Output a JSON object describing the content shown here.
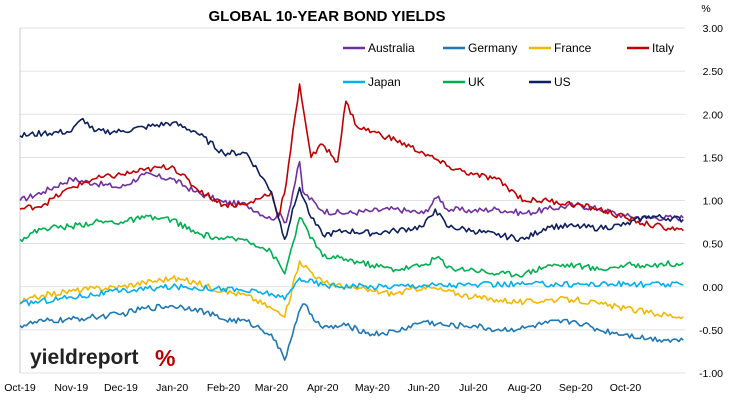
{
  "chart_data": {
    "type": "line",
    "title": "GLOBAL 10-YEAR BOND YIELDS",
    "ylabel": "%",
    "xlabel": "",
    "ylim": [
      -1.0,
      3.0
    ],
    "y_ticks": [
      "-1.00",
      "-0.50",
      "0.00",
      "0.50",
      "1.00",
      "1.50",
      "2.00",
      "2.50",
      "3.00"
    ],
    "x_ticks": [
      "Oct-19",
      "Nov-19",
      "Dec-19",
      "Jan-20",
      "Feb-20",
      "Mar-20",
      "Apr-20",
      "May-20",
      "Jun-20",
      "Jul-20",
      "Aug-20",
      "Sep-20",
      "Oct-20"
    ],
    "x_axis_range": [
      "2019-10-01",
      "2020-11-06"
    ],
    "grid": "horizontal",
    "y_axis_side": "right",
    "legend_position": "top-right",
    "series": [
      {
        "name": "Australia",
        "color": "#7030A0",
        "x": [
          "2019-10-01",
          "2019-10-15",
          "2019-11-01",
          "2019-11-15",
          "2019-12-01",
          "2019-12-15",
          "2020-01-01",
          "2020-01-15",
          "2020-02-01",
          "2020-02-15",
          "2020-03-01",
          "2020-03-05",
          "2020-03-10",
          "2020-03-18",
          "2020-03-20",
          "2020-04-01",
          "2020-04-15",
          "2020-05-01",
          "2020-05-15",
          "2020-06-01",
          "2020-06-10",
          "2020-06-15",
          "2020-07-01",
          "2020-07-15",
          "2020-08-01",
          "2020-08-15",
          "2020-09-01",
          "2020-09-15",
          "2020-10-01",
          "2020-10-15",
          "2020-11-05"
        ],
        "values": [
          1.0,
          1.1,
          1.25,
          1.2,
          1.15,
          1.3,
          1.25,
          1.1,
          0.98,
          0.95,
          0.78,
          0.85,
          0.75,
          1.45,
          1.1,
          0.88,
          0.85,
          0.88,
          0.9,
          0.85,
          1.05,
          0.9,
          0.88,
          0.9,
          0.85,
          0.9,
          0.95,
          0.9,
          0.82,
          0.8,
          0.8
        ]
      },
      {
        "name": "Germany",
        "color": "#1F77B4",
        "x": [
          "2019-10-01",
          "2019-10-15",
          "2019-11-01",
          "2019-11-15",
          "2019-12-01",
          "2019-12-15",
          "2020-01-01",
          "2020-01-15",
          "2020-02-01",
          "2020-02-15",
          "2020-03-01",
          "2020-03-09",
          "2020-03-15",
          "2020-03-20",
          "2020-04-01",
          "2020-04-15",
          "2020-05-01",
          "2020-05-15",
          "2020-06-01",
          "2020-06-15",
          "2020-07-01",
          "2020-07-15",
          "2020-08-01",
          "2020-08-15",
          "2020-09-01",
          "2020-09-15",
          "2020-10-01",
          "2020-10-15",
          "2020-11-05"
        ],
        "values": [
          -0.45,
          -0.4,
          -0.38,
          -0.35,
          -0.32,
          -0.25,
          -0.22,
          -0.25,
          -0.38,
          -0.4,
          -0.55,
          -0.85,
          -0.45,
          -0.2,
          -0.48,
          -0.45,
          -0.55,
          -0.52,
          -0.4,
          -0.45,
          -0.45,
          -0.5,
          -0.48,
          -0.42,
          -0.4,
          -0.5,
          -0.55,
          -0.6,
          -0.62
        ]
      },
      {
        "name": "France",
        "color": "#F5B800",
        "x": [
          "2019-10-01",
          "2019-10-15",
          "2019-11-01",
          "2019-11-15",
          "2019-12-01",
          "2019-12-15",
          "2020-01-01",
          "2020-01-15",
          "2020-02-01",
          "2020-02-15",
          "2020-03-01",
          "2020-03-09",
          "2020-03-18",
          "2020-04-01",
          "2020-04-15",
          "2020-05-01",
          "2020-05-15",
          "2020-06-01",
          "2020-06-15",
          "2020-07-01",
          "2020-07-15",
          "2020-08-01",
          "2020-08-15",
          "2020-09-01",
          "2020-09-15",
          "2020-10-01",
          "2020-10-15",
          "2020-11-05"
        ],
        "values": [
          -0.18,
          -0.1,
          -0.05,
          -0.02,
          0.0,
          0.05,
          0.1,
          0.05,
          -0.05,
          -0.1,
          -0.25,
          -0.35,
          0.3,
          0.05,
          0.0,
          -0.05,
          -0.08,
          0.0,
          -0.05,
          -0.12,
          -0.15,
          -0.18,
          -0.15,
          -0.15,
          -0.2,
          -0.25,
          -0.3,
          -0.35
        ]
      },
      {
        "name": "Italy",
        "color": "#C00000",
        "x": [
          "2019-10-01",
          "2019-10-15",
          "2019-11-01",
          "2019-11-15",
          "2019-12-01",
          "2019-12-15",
          "2020-01-01",
          "2020-01-15",
          "2020-02-01",
          "2020-02-15",
          "2020-03-01",
          "2020-03-05",
          "2020-03-10",
          "2020-03-18",
          "2020-03-25",
          "2020-04-01",
          "2020-04-10",
          "2020-04-15",
          "2020-04-22",
          "2020-05-01",
          "2020-05-15",
          "2020-06-01",
          "2020-06-15",
          "2020-07-01",
          "2020-07-15",
          "2020-08-01",
          "2020-08-15",
          "2020-09-01",
          "2020-09-15",
          "2020-10-01",
          "2020-10-15",
          "2020-11-05"
        ],
        "values": [
          0.9,
          0.95,
          1.15,
          1.25,
          1.3,
          1.35,
          1.4,
          1.15,
          0.95,
          0.95,
          1.1,
          0.8,
          1.2,
          2.35,
          1.5,
          1.65,
          1.45,
          2.15,
          1.85,
          1.8,
          1.7,
          1.55,
          1.4,
          1.3,
          1.25,
          1.0,
          1.0,
          0.95,
          0.9,
          0.8,
          0.72,
          0.65
        ]
      },
      {
        "name": "Japan",
        "color": "#00B0F0",
        "x": [
          "2019-10-01",
          "2019-11-01",
          "2019-12-01",
          "2020-01-01",
          "2020-02-01",
          "2020-03-01",
          "2020-03-09",
          "2020-03-18",
          "2020-04-01",
          "2020-05-01",
          "2020-06-01",
          "2020-07-01",
          "2020-08-01",
          "2020-09-01",
          "2020-10-01",
          "2020-11-05"
        ],
        "values": [
          -0.2,
          -0.12,
          -0.05,
          0.0,
          -0.02,
          -0.08,
          -0.15,
          0.1,
          0.02,
          0.0,
          0.02,
          0.02,
          0.03,
          0.03,
          0.03,
          0.02
        ]
      },
      {
        "name": "UK",
        "color": "#00B050",
        "x": [
          "2019-10-01",
          "2019-10-15",
          "2019-11-01",
          "2019-11-15",
          "2019-12-01",
          "2019-12-15",
          "2020-01-01",
          "2020-01-15",
          "2020-02-01",
          "2020-02-15",
          "2020-03-01",
          "2020-03-09",
          "2020-03-18",
          "2020-04-01",
          "2020-04-15",
          "2020-05-01",
          "2020-05-15",
          "2020-06-01",
          "2020-06-10",
          "2020-06-15",
          "2020-07-01",
          "2020-07-15",
          "2020-08-01",
          "2020-08-15",
          "2020-09-01",
          "2020-09-15",
          "2020-10-01",
          "2020-10-15",
          "2020-11-05"
        ],
        "values": [
          0.55,
          0.68,
          0.7,
          0.75,
          0.75,
          0.8,
          0.78,
          0.62,
          0.55,
          0.55,
          0.4,
          0.15,
          0.8,
          0.35,
          0.32,
          0.25,
          0.2,
          0.25,
          0.35,
          0.22,
          0.2,
          0.15,
          0.15,
          0.25,
          0.25,
          0.2,
          0.25,
          0.25,
          0.28
        ]
      },
      {
        "name": "US",
        "color": "#0D1F5C",
        "x": [
          "2019-10-01",
          "2019-10-15",
          "2019-11-01",
          "2019-11-08",
          "2019-11-15",
          "2019-12-01",
          "2019-12-15",
          "2020-01-01",
          "2020-01-15",
          "2020-02-01",
          "2020-02-15",
          "2020-03-01",
          "2020-03-09",
          "2020-03-15",
          "2020-03-18",
          "2020-03-25",
          "2020-04-01",
          "2020-04-15",
          "2020-05-01",
          "2020-05-15",
          "2020-06-01",
          "2020-06-08",
          "2020-06-15",
          "2020-07-01",
          "2020-07-15",
          "2020-08-01",
          "2020-08-15",
          "2020-09-01",
          "2020-09-15",
          "2020-10-01",
          "2020-10-15",
          "2020-11-05"
        ],
        "values": [
          1.75,
          1.78,
          1.8,
          1.95,
          1.8,
          1.8,
          1.85,
          1.9,
          1.8,
          1.55,
          1.55,
          1.1,
          0.55,
          0.95,
          1.15,
          0.8,
          0.6,
          0.65,
          0.62,
          0.65,
          0.7,
          0.9,
          0.7,
          0.65,
          0.6,
          0.55,
          0.7,
          0.7,
          0.68,
          0.72,
          0.82,
          0.78
        ]
      }
    ]
  },
  "brand": {
    "name": "yieldreport",
    "symbol": "%"
  }
}
